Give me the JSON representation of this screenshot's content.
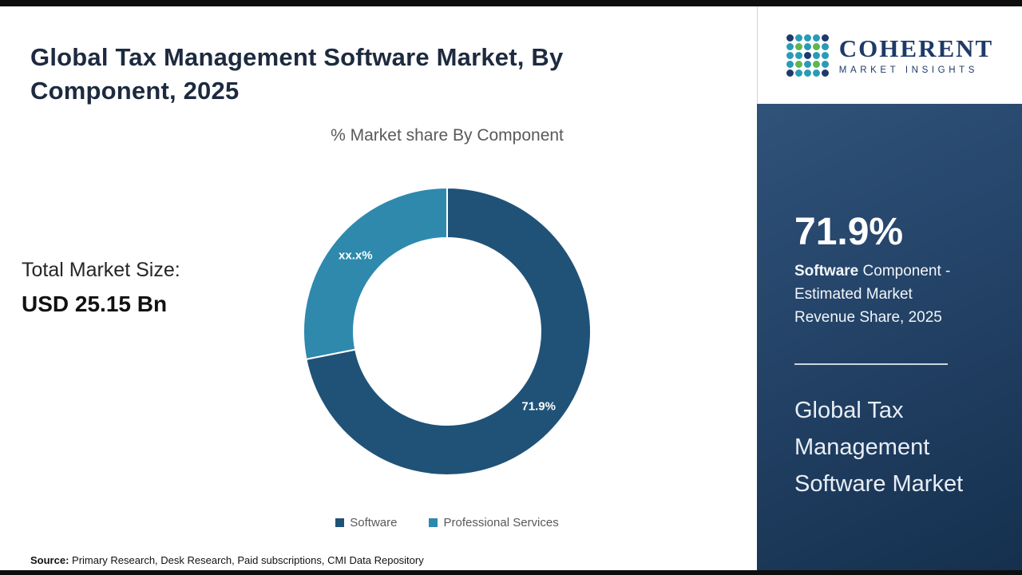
{
  "page": {
    "title": "Global Tax Management Software Market, By Component, 2025",
    "source_label": "Source:",
    "source_text": " Primary Research, Desk Research, Paid subscriptions, CMI Data Repository"
  },
  "left": {
    "total_label": "Total Market Size:",
    "total_value": "USD 25.15 Bn"
  },
  "chart_data": {
    "type": "pie",
    "subtype": "donut",
    "title": "% Market share By Component",
    "categories": [
      "Software",
      "Professional Services"
    ],
    "values": [
      71.9,
      28.1
    ],
    "slice_labels": [
      "71.9%",
      "xx.x%"
    ],
    "colors": [
      "#205278",
      "#2e89ad"
    ],
    "legend_position": "bottom",
    "start_angle_deg": 0,
    "inner_radius_ratio": 0.65
  },
  "sidebar": {
    "logo": {
      "name": "COHERENT",
      "tagline": "MARKET INSIGHTS",
      "mark_colors": [
        "#1d3a6d",
        "#2a9bb7",
        "#63b54f"
      ]
    },
    "stat_value": "71.9%",
    "stat_desc_bold": "Software",
    "stat_desc_rest": " Component - Estimated Market Revenue Share, 2025",
    "panel_title": "Global Tax Management Software Market",
    "accent_dark": "#15304e",
    "accent_light": "#35597f"
  }
}
